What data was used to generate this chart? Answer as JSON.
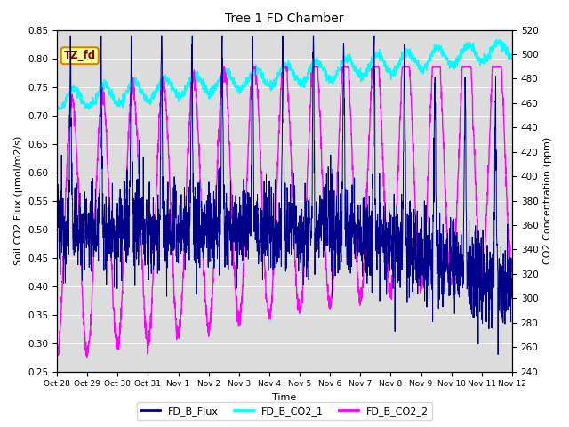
{
  "title": "Tree 1 FD Chamber",
  "xlabel": "Time",
  "ylabel_left": "Soil CO2 Flux (μmol/m2/s)",
  "ylabel_right": "CO2 Concentration (ppm)",
  "ylim_left": [
    0.25,
    0.85
  ],
  "ylim_right": [
    240,
    520
  ],
  "yticks_left": [
    0.25,
    0.3,
    0.35,
    0.4,
    0.45,
    0.5,
    0.55,
    0.6,
    0.65,
    0.7,
    0.75,
    0.8,
    0.85
  ],
  "yticks_right": [
    240,
    260,
    280,
    300,
    320,
    340,
    360,
    380,
    400,
    420,
    440,
    460,
    480,
    500,
    520
  ],
  "xtick_labels": [
    "Oct 28",
    "Oct 29",
    "Oct 30",
    "Oct 31",
    "Nov 1",
    "Nov 2",
    "Nov 3",
    "Nov 4",
    "Nov 5",
    "Nov 6",
    "Nov 7",
    "Nov 8",
    "Nov 9",
    "Nov 10",
    "Nov 11",
    "Nov 12"
  ],
  "color_flux": "#00008B",
  "color_co2_1": "#00FFFF",
  "color_co2_2": "#FF00FF",
  "bg_color": "#DCDCDC",
  "annotation_text": "TZ_fd",
  "annotation_bg": "#FFFF99",
  "annotation_border": "#CC8800",
  "annotation_text_color": "#8B0000",
  "legend_flux": "FD_B_Flux",
  "legend_co2_1": "FD_B_CO2_1",
  "legend_co2_2": "FD_B_CO2_2",
  "n_days": 15,
  "points_per_day": 144
}
